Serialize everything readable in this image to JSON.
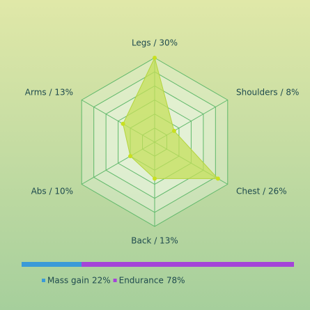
{
  "chart_data": [
    {
      "type": "radar",
      "value_labels": [
        "Legs / 30%",
        "Shoulders / 8%",
        "Chest / 26%",
        "Back / 13%",
        "Abs / 10%",
        "Arms / 13%"
      ],
      "values": [
        30,
        8,
        26,
        13,
        10,
        13
      ],
      "color": "#c4df5a",
      "ylim": [
        0,
        30
      ],
      "yticks": [
        5,
        10,
        15,
        20,
        25,
        30
      ],
      "grid": true
    },
    {
      "type": "stacked-bar",
      "series": [
        {
          "name": "Mass gain",
          "color": "#3a9ad8",
          "values": [
            22
          ],
          "value_labels": [
            "22%"
          ]
        },
        {
          "name": "Endurance",
          "color": "#a444d8",
          "values": [
            78
          ],
          "value_labels": [
            "78%"
          ]
        }
      ],
      "xlim": [
        0,
        100
      ]
    }
  ]
}
